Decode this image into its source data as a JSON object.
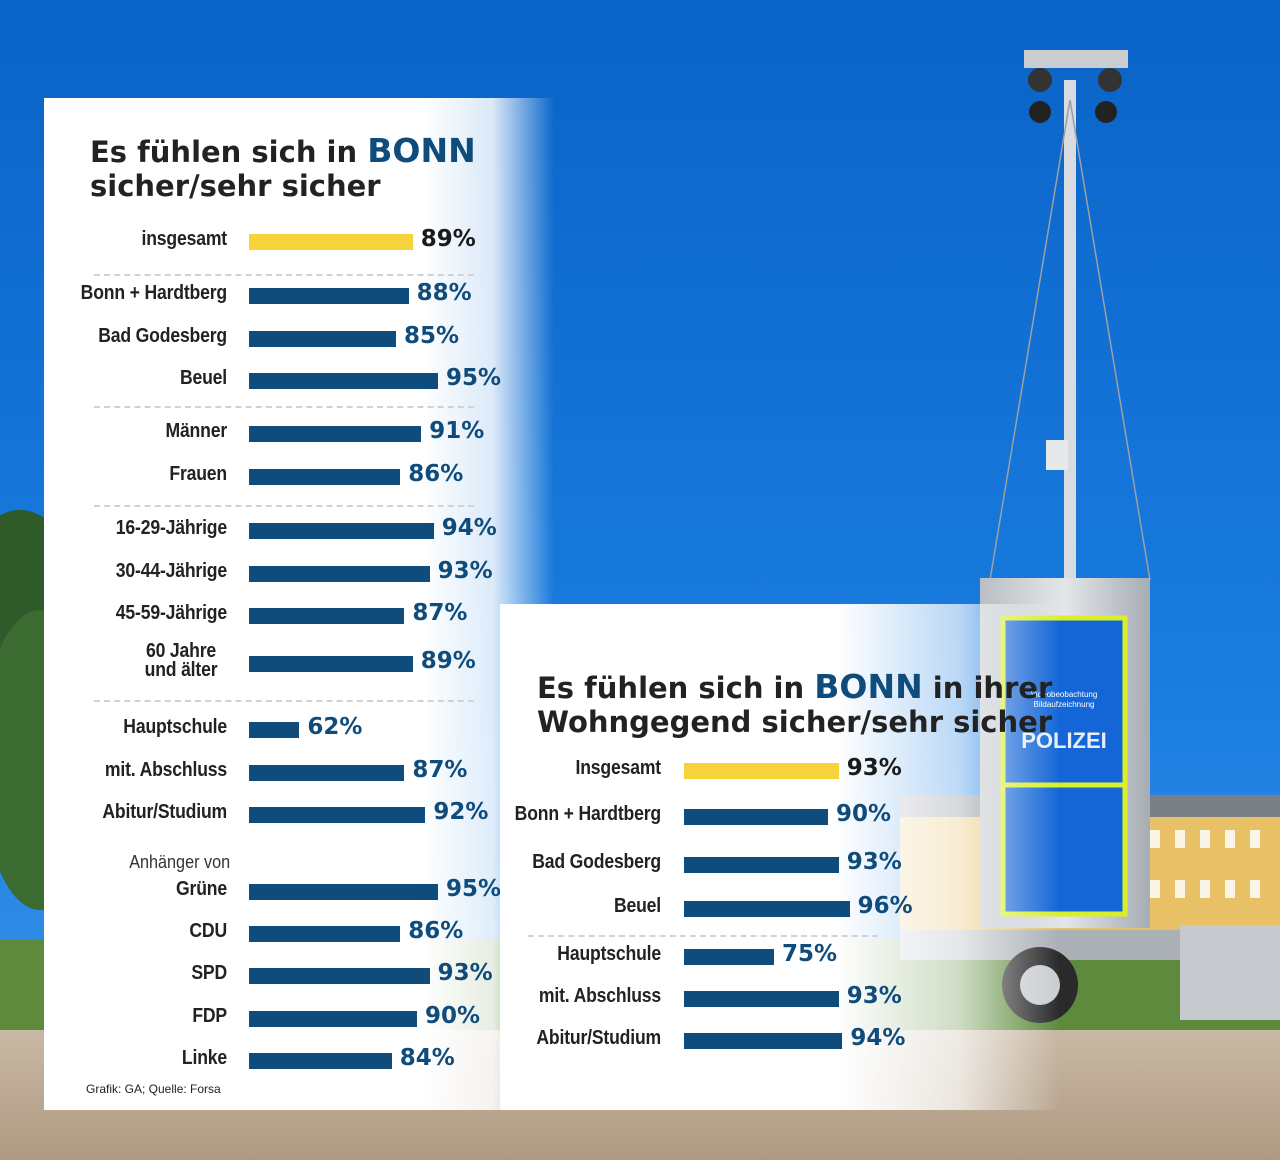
{
  "colors": {
    "highlight": "#f6d33a",
    "bar": "#0f4c7c",
    "value_highlight": "#1a1a1a",
    "value": "#0f4c7c",
    "title_accent": "#0f4c7c"
  },
  "background": {
    "trailer_sign_top": "Videobeobachtung",
    "trailer_sign_bottom": "Bildaufzeichnung",
    "trailer_text": "POLIZEI"
  },
  "chart_data": [
    {
      "type": "bar",
      "title_part1": "Es fühlen sich in ",
      "title_accent": "BONN",
      "title_part2": "sicher/sehr sicher",
      "xlim": [
        0,
        100
      ],
      "unit": "%",
      "rows": [
        {
          "label": "insgesamt",
          "value": 89,
          "display": "89%",
          "highlight": true
        },
        {
          "label": "Bonn + Hardtberg",
          "value": 88,
          "display": "88%"
        },
        {
          "label": "Bad Godesberg",
          "value": 85,
          "display": "85%"
        },
        {
          "label": "Beuel",
          "value": 95,
          "display": "95%"
        },
        {
          "label": "Männer",
          "value": 91,
          "display": "91%"
        },
        {
          "label": "Frauen",
          "value": 86,
          "display": "86%"
        },
        {
          "label": "16-29-Jährige",
          "value": 94,
          "display": "94%"
        },
        {
          "label": "30-44-Jährige",
          "value": 93,
          "display": "93%"
        },
        {
          "label": "45-59-Jährige",
          "value": 87,
          "display": "87%"
        },
        {
          "label": "60 Jahre\nund älter",
          "value": 89,
          "display": "89%"
        },
        {
          "label": "Hauptschule",
          "value": 62,
          "display": "62%"
        },
        {
          "label": "mit. Abschluss",
          "value": 87,
          "display": "87%"
        },
        {
          "label": "Abitur/Studium",
          "value": 92,
          "display": "92%"
        },
        {
          "label": "Grüne",
          "value": 95,
          "display": "95%"
        },
        {
          "label": "CDU",
          "value": 86,
          "display": "86%"
        },
        {
          "label": "SPD",
          "value": 93,
          "display": "93%"
        },
        {
          "label": "FDP",
          "value": 90,
          "display": "90%"
        },
        {
          "label": "Linke",
          "value": 84,
          "display": "84%"
        }
      ],
      "group_heading": "Anhänger von",
      "source": "Grafik: GA; Quelle: Forsa"
    },
    {
      "type": "bar",
      "title_part1": "Es fühlen sich in ",
      "title_accent": "BONN",
      "title_part1b": " in ihrer",
      "title_part2": "Wohngegend sicher/sehr sicher",
      "xlim": [
        0,
        100
      ],
      "unit": "%",
      "rows": [
        {
          "label": "Insgesamt",
          "value": 93,
          "display": "93%",
          "highlight": true
        },
        {
          "label": "Bonn + Hardtberg",
          "value": 90,
          "display": "90%"
        },
        {
          "label": "Bad Godesberg",
          "value": 93,
          "display": "93%"
        },
        {
          "label": "Beuel",
          "value": 96,
          "display": "96%"
        },
        {
          "label": "Hauptschule",
          "value": 75,
          "display": "75%"
        },
        {
          "label": "mit. Abschluss",
          "value": 93,
          "display": "93%"
        },
        {
          "label": "Abitur/Studium",
          "value": 94,
          "display": "94%"
        }
      ]
    }
  ]
}
